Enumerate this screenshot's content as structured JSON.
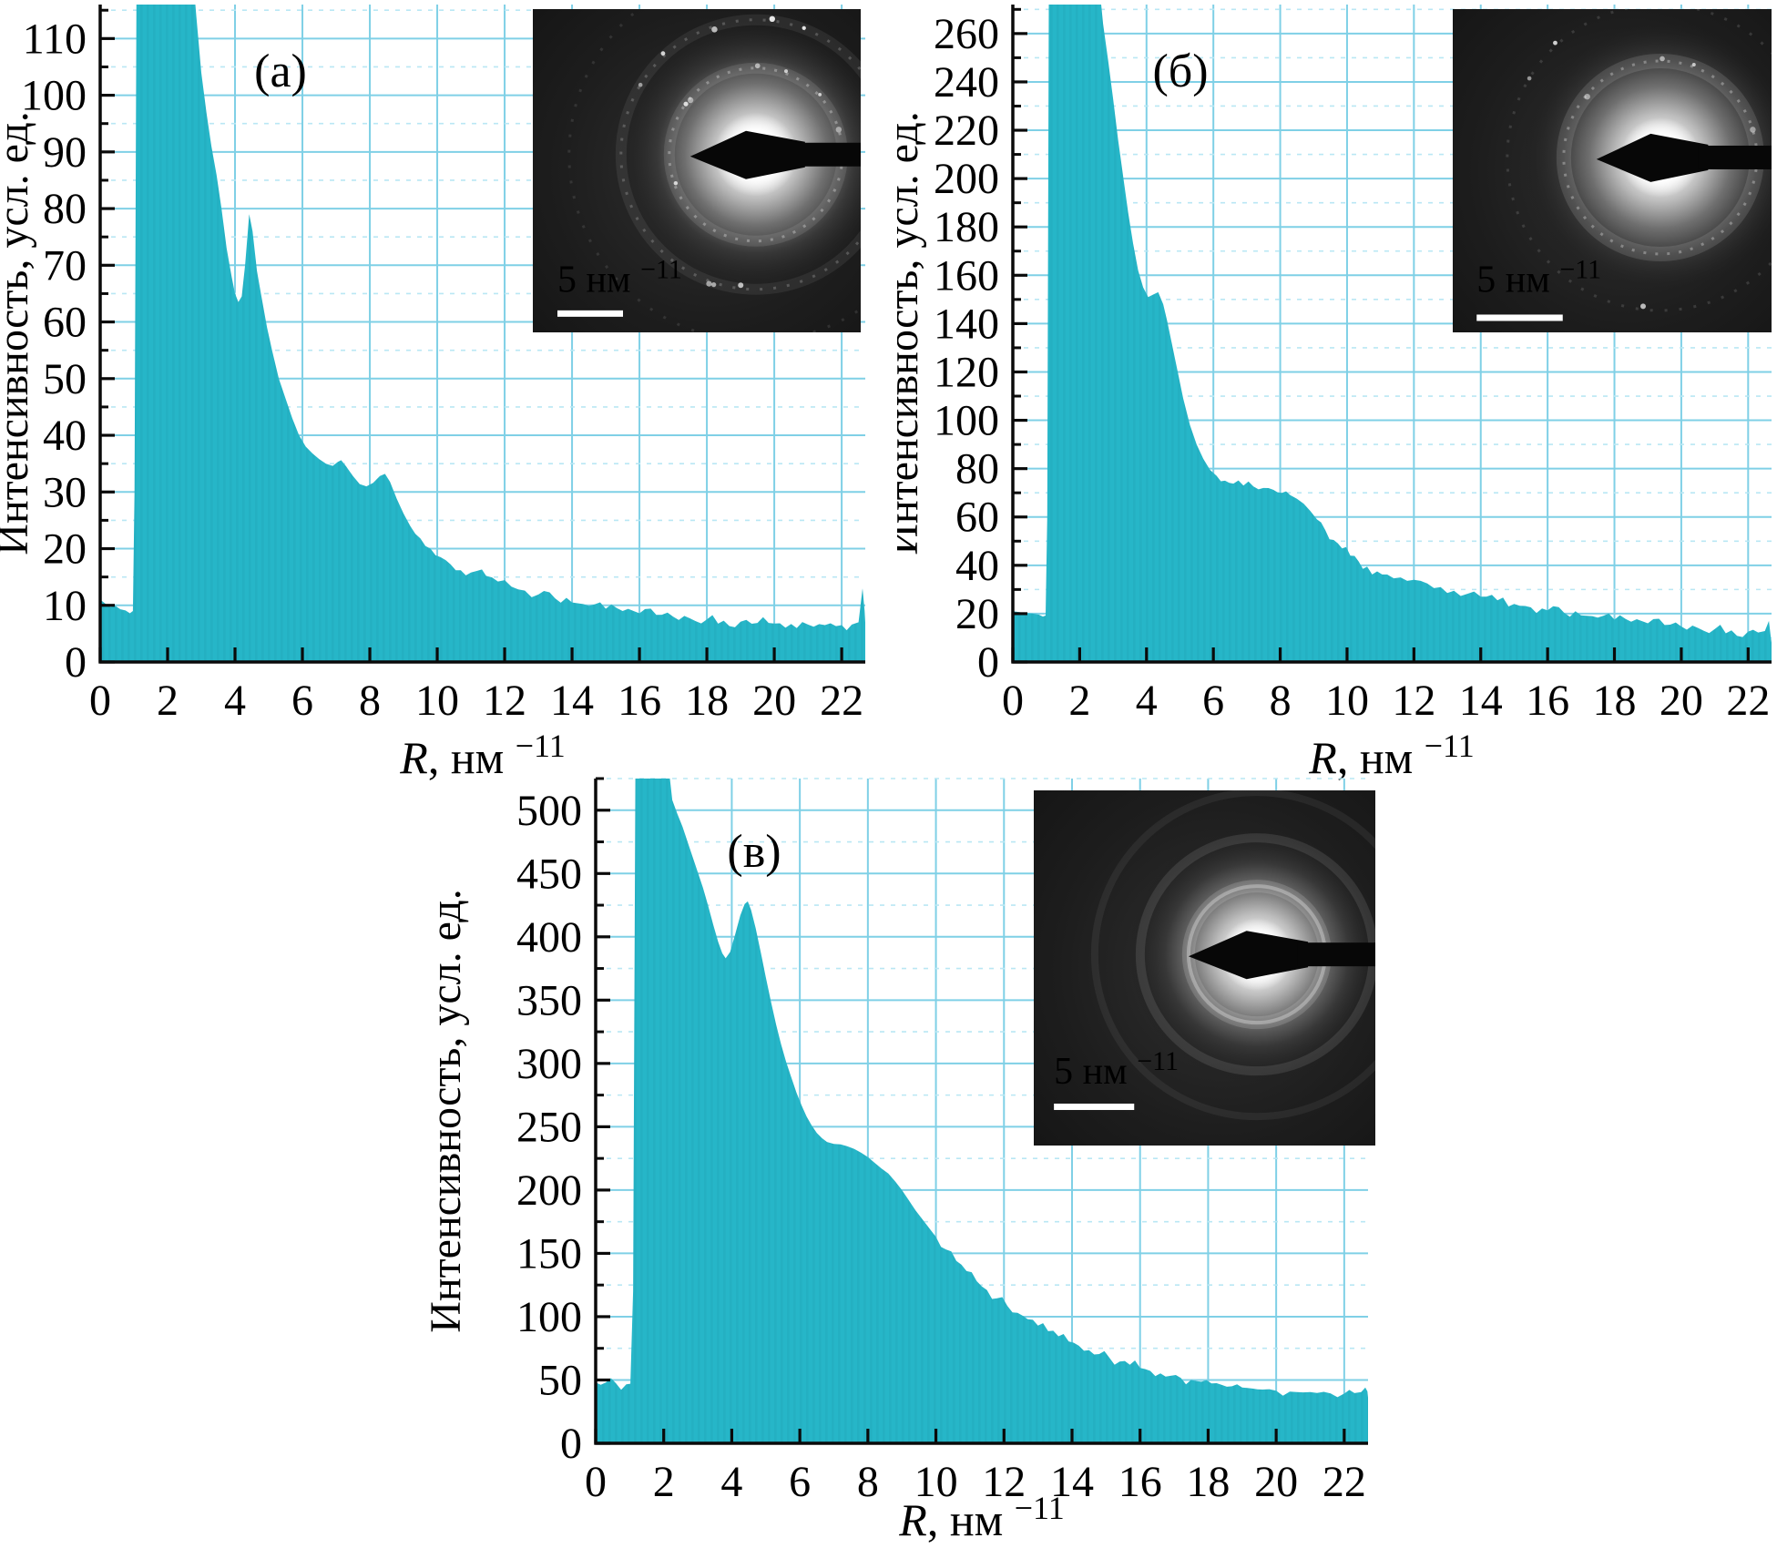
{
  "figure": {
    "background": "#ffffff",
    "fill_color": "#26b6c8",
    "grid_major_color": "#7fd0e6",
    "grid_minor_color": "#b9e7f4",
    "axis_color": "#0a0a0a",
    "text_color": "#000000",
    "inset_background": "#1a1a1a",
    "inset_text_color": "#ffffff"
  },
  "chart_data": [
    {
      "id": "a",
      "type": "area",
      "panel_label": "(а)",
      "xlabel": "R, нм⁻¹",
      "ylabel": "Интенсивность, усл. ед.",
      "xlim": [
        0,
        22.7
      ],
      "ylim": [
        0,
        116
      ],
      "x_major_tick": 2,
      "x_minor_tick": 1,
      "y_major_tick": 10,
      "y_minor_tick": 5,
      "grid": true,
      "series": [
        {
          "name": "radial-intensity",
          "points": [
            [
              0,
              11
            ],
            [
              0.15,
              10.3
            ],
            [
              0.3,
              9.7
            ],
            [
              0.45,
              9.9
            ],
            [
              0.6,
              9.3
            ],
            [
              0.75,
              9.1
            ],
            [
              0.88,
              8.6
            ],
            [
              0.97,
              9
            ],
            [
              1.02,
              30
            ],
            [
              1.08,
              125
            ],
            [
              2.7,
              125
            ],
            [
              2.85,
              114
            ],
            [
              3,
              104
            ],
            [
              3.15,
              97
            ],
            [
              3.3,
              91
            ],
            [
              3.45,
              86
            ],
            [
              3.6,
              80
            ],
            [
              3.75,
              73
            ],
            [
              3.9,
              68
            ],
            [
              4,
              65
            ],
            [
              4.1,
              63.5
            ],
            [
              4.2,
              64.5
            ],
            [
              4.3,
              70
            ],
            [
              4.42,
              79
            ],
            [
              4.52,
              76
            ],
            [
              4.65,
              69
            ],
            [
              4.8,
              64
            ],
            [
              4.95,
              59
            ],
            [
              5.1,
              55
            ],
            [
              5.3,
              50
            ],
            [
              5.5,
              46.5
            ],
            [
              5.7,
              43
            ],
            [
              5.9,
              40
            ],
            [
              6.1,
              38
            ],
            [
              6.3,
              36.8
            ],
            [
              6.5,
              35.8
            ],
            [
              6.7,
              35
            ],
            [
              6.9,
              34.6
            ],
            [
              7.05,
              35.3
            ],
            [
              7.15,
              35.6
            ],
            [
              7.3,
              34.5
            ],
            [
              7.5,
              32.8
            ],
            [
              7.7,
              31.4
            ],
            [
              7.9,
              31
            ],
            [
              8.1,
              31.6
            ],
            [
              8.3,
              32.8
            ],
            [
              8.45,
              33.2
            ],
            [
              8.6,
              31.8
            ],
            [
              8.8,
              28.8
            ],
            [
              9,
              26.2
            ],
            [
              9.2,
              24
            ],
            [
              9.5,
              21.8
            ],
            [
              9.8,
              20
            ],
            [
              10.1,
              18.5
            ],
            [
              10.4,
              17.2
            ],
            [
              10.7,
              16.2
            ],
            [
              11,
              15.8
            ],
            [
              11.2,
              16.1
            ],
            [
              11.45,
              15.2
            ],
            [
              11.8,
              14.2
            ],
            [
              12.2,
              13.3
            ],
            [
              12.6,
              12.6
            ],
            [
              13,
              11.9
            ],
            [
              13.5,
              11.2
            ],
            [
              14,
              10.5
            ],
            [
              14.5,
              9.9
            ],
            [
              15,
              9.4
            ],
            [
              15.5,
              9
            ],
            [
              16,
              8.6
            ],
            [
              16.5,
              8.3
            ],
            [
              17,
              8
            ],
            [
              17.5,
              7.7
            ],
            [
              18,
              7.5
            ],
            [
              18.5,
              7.3
            ],
            [
              19,
              7.1
            ],
            [
              19.5,
              6.9
            ],
            [
              20,
              6.8
            ],
            [
              20.5,
              6.7
            ],
            [
              21,
              6.6
            ],
            [
              21.5,
              6.5
            ],
            [
              22,
              6.5
            ],
            [
              22.3,
              6.6
            ],
            [
              22.5,
              7
            ],
            [
              22.62,
              13
            ],
            [
              22.68,
              9
            ],
            [
              22.7,
              7
            ]
          ]
        }
      ],
      "inset": {
        "type": "electron-diffraction-pattern",
        "scale_label": "5 нм⁻¹"
      }
    },
    {
      "id": "b",
      "type": "area",
      "panel_label": "(б)",
      "xlabel": "R, нм⁻¹",
      "ylabel": "Интенсивность, усл. ед.",
      "xlim": [
        0,
        22.7
      ],
      "ylim": [
        0,
        272
      ],
      "x_major_tick": 2,
      "x_minor_tick": 1,
      "y_major_tick": 20,
      "y_minor_tick": 10,
      "grid": true,
      "series": [
        {
          "name": "radial-intensity",
          "points": [
            [
              0,
              21
            ],
            [
              0.2,
              20.6
            ],
            [
              0.4,
              20.2
            ],
            [
              0.6,
              20
            ],
            [
              0.78,
              19.6
            ],
            [
              0.9,
              18.8
            ],
            [
              0.98,
              19.2
            ],
            [
              1.03,
              60
            ],
            [
              1.08,
              285
            ],
            [
              2.55,
              285
            ],
            [
              2.7,
              264
            ],
            [
              2.85,
              249
            ],
            [
              3,
              233
            ],
            [
              3.15,
              216
            ],
            [
              3.3,
              201
            ],
            [
              3.45,
              186
            ],
            [
              3.6,
              173
            ],
            [
              3.75,
              162
            ],
            [
              3.9,
              155
            ],
            [
              4.05,
              151
            ],
            [
              4.2,
              152
            ],
            [
              4.35,
              153
            ],
            [
              4.5,
              148
            ],
            [
              4.62,
              141
            ],
            [
              4.77,
              131
            ],
            [
              4.92,
              121
            ],
            [
              5.1,
              109
            ],
            [
              5.3,
              98
            ],
            [
              5.5,
              90
            ],
            [
              5.7,
              84
            ],
            [
              5.9,
              79.5
            ],
            [
              6.1,
              77
            ],
            [
              6.35,
              75
            ],
            [
              6.6,
              73.8
            ],
            [
              6.9,
              73
            ],
            [
              7.2,
              72.6
            ],
            [
              7.5,
              72
            ],
            [
              7.8,
              71.2
            ],
            [
              8.05,
              70
            ],
            [
              8.3,
              69
            ],
            [
              8.5,
              67.5
            ],
            [
              8.7,
              65.5
            ],
            [
              8.9,
              62.5
            ],
            [
              9.1,
              59
            ],
            [
              9.35,
              54.5
            ],
            [
              9.6,
              50.5
            ],
            [
              9.85,
              47
            ],
            [
              10.1,
              44
            ],
            [
              10.35,
              41.5
            ],
            [
              10.6,
              39.5
            ],
            [
              10.9,
              37.5
            ],
            [
              11.2,
              36.2
            ],
            [
              11.6,
              35
            ],
            [
              12,
              34
            ],
            [
              12.4,
              32.5
            ],
            [
              12.8,
              31
            ],
            [
              13.2,
              29.5
            ],
            [
              13.6,
              28.2
            ],
            [
              14,
              27
            ],
            [
              14.5,
              25.5
            ],
            [
              15,
              24
            ],
            [
              15.5,
              22.6
            ],
            [
              16,
              21.4
            ],
            [
              16.5,
              20.3
            ],
            [
              17,
              19.3
            ],
            [
              17.5,
              18.4
            ],
            [
              18,
              17.5
            ],
            [
              18.5,
              16.7
            ],
            [
              19,
              16
            ],
            [
              19.5,
              15.3
            ],
            [
              20,
              14.7
            ],
            [
              20.5,
              14.1
            ],
            [
              21,
              13.6
            ],
            [
              21.5,
              13.1
            ],
            [
              22,
              12.6
            ],
            [
              22.3,
              12.2
            ],
            [
              22.5,
              12.8
            ],
            [
              22.62,
              17
            ],
            [
              22.68,
              10
            ],
            [
              22.7,
              8
            ]
          ]
        }
      ],
      "inset": {
        "type": "electron-diffraction-pattern",
        "scale_label": "5 нм⁻¹"
      }
    },
    {
      "id": "v",
      "type": "area",
      "panel_label": "(в)",
      "xlabel": "R, нм⁻¹",
      "ylabel": "Интенсивность, усл. ед.",
      "xlim": [
        0,
        22.7
      ],
      "ylim": [
        0,
        525
      ],
      "x_major_tick": 2,
      "x_minor_tick": 1,
      "y_major_tick": 50,
      "y_minor_tick": 25,
      "grid": true,
      "series": [
        {
          "name": "radial-intensity",
          "points": [
            [
              0,
              48
            ],
            [
              0.3,
              48
            ],
            [
              0.6,
              47.3
            ],
            [
              0.9,
              46.5
            ],
            [
              1.02,
              47
            ],
            [
              1.1,
              120
            ],
            [
              1.17,
              545
            ],
            [
              2.1,
              545
            ],
            [
              2.25,
              508
            ],
            [
              2.4,
              497
            ],
            [
              2.55,
              487
            ],
            [
              2.7,
              475
            ],
            [
              2.85,
              463
            ],
            [
              3,
              451
            ],
            [
              3.15,
              439
            ],
            [
              3.3,
              425
            ],
            [
              3.45,
              410
            ],
            [
              3.6,
              396
            ],
            [
              3.72,
              387
            ],
            [
              3.82,
              383
            ],
            [
              3.95,
              388
            ],
            [
              4.1,
              402
            ],
            [
              4.25,
              417
            ],
            [
              4.38,
              426
            ],
            [
              4.47,
              428
            ],
            [
              4.57,
              421
            ],
            [
              4.7,
              407
            ],
            [
              4.85,
              388
            ],
            [
              5,
              368
            ],
            [
              5.15,
              349
            ],
            [
              5.3,
              331
            ],
            [
              5.45,
              315
            ],
            [
              5.6,
              301
            ],
            [
              5.75,
              289
            ],
            [
              5.9,
              277
            ],
            [
              6.05,
              267
            ],
            [
              6.2,
              258
            ],
            [
              6.35,
              251
            ],
            [
              6.5,
              245
            ],
            [
              6.65,
              241
            ],
            [
              6.8,
              238
            ],
            [
              7,
              236.5
            ],
            [
              7.2,
              236
            ],
            [
              7.4,
              234.5
            ],
            [
              7.6,
              232.5
            ],
            [
              7.8,
              229.5
            ],
            [
              8,
              226
            ],
            [
              8.2,
              221.5
            ],
            [
              8.4,
              217
            ],
            [
              8.6,
              213
            ],
            [
              8.8,
              207
            ],
            [
              9,
              200
            ],
            [
              9.2,
              192
            ],
            [
              9.4,
              184
            ],
            [
              9.6,
              177
            ],
            [
              9.8,
              170
            ],
            [
              10,
              163
            ],
            [
              10.3,
              153
            ],
            [
              10.6,
              144
            ],
            [
              10.9,
              136
            ],
            [
              11.2,
              128
            ],
            [
              11.5,
              121
            ],
            [
              11.8,
              114.5
            ],
            [
              12.1,
              108.5
            ],
            [
              12.4,
              103
            ],
            [
              12.7,
              98
            ],
            [
              13,
              93
            ],
            [
              13.3,
              88.5
            ],
            [
              13.6,
              84.5
            ],
            [
              13.9,
              80.5
            ],
            [
              14.2,
              77
            ],
            [
              14.5,
              73.5
            ],
            [
              14.8,
              70.5
            ],
            [
              15.1,
              67.5
            ],
            [
              15.4,
              64.5
            ],
            [
              15.7,
              62
            ],
            [
              16,
              59.5
            ],
            [
              16.3,
              57.2
            ],
            [
              16.6,
              55.2
            ],
            [
              16.9,
              53.3
            ],
            [
              17.2,
              51.6
            ],
            [
              17.5,
              50
            ],
            [
              17.8,
              48.6
            ],
            [
              18.1,
              47.3
            ],
            [
              18.4,
              46.1
            ],
            [
              18.7,
              45
            ],
            [
              19,
              44
            ],
            [
              19.3,
              43.2
            ],
            [
              19.6,
              42.4
            ],
            [
              20,
              41.5
            ],
            [
              20.4,
              40.8
            ],
            [
              20.8,
              40.2
            ],
            [
              21.2,
              39.7
            ],
            [
              21.6,
              39.4
            ],
            [
              22,
              39.3
            ],
            [
              22.3,
              39.6
            ],
            [
              22.5,
              40.5
            ],
            [
              22.62,
              44
            ],
            [
              22.68,
              41
            ],
            [
              22.7,
              36
            ]
          ]
        }
      ],
      "inset": {
        "type": "electron-diffraction-pattern",
        "scale_label": "5 нм⁻¹"
      }
    }
  ]
}
